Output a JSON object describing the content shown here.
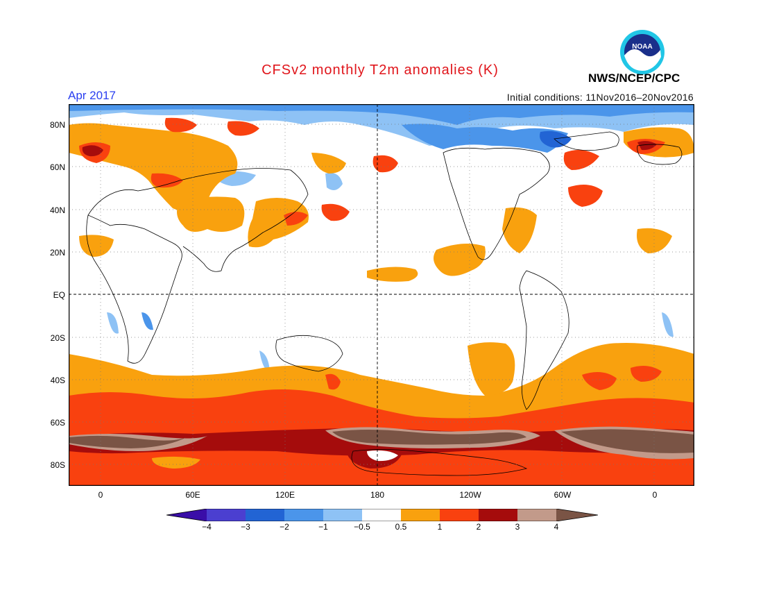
{
  "title": "CFSv2 monthly T2m anomalies (K)",
  "valid_month": "Apr 2017",
  "initial_conditions": "Initial conditions: 11Nov2016–20Nov2016",
  "organization": "NWS/NCEP/CPC",
  "logo_text": "NOAA",
  "lat_labels": [
    "80N",
    "60N",
    "40N",
    "20N",
    "EQ",
    "20S",
    "40S",
    "60S",
    "80S"
  ],
  "lon_labels": [
    "0",
    "60E",
    "120E",
    "180",
    "120W",
    "60W",
    "0"
  ],
  "colorbar": {
    "labels": [
      "−4",
      "−3",
      "−2",
      "−1",
      "−0.5",
      "0.5",
      "1",
      "2",
      "3",
      "4"
    ],
    "colors": [
      "#3a0ea8",
      "#4b3fd0",
      "#2264d4",
      "#4b95ea",
      "#8ec2f5",
      "#ffffff",
      "#f9a10e",
      "#f9410f",
      "#a50c0c",
      "#c29a8a",
      "#7a5445"
    ]
  },
  "colors": {
    "title": "#e0151b",
    "month": "#2a3ff0",
    "warm_light": "#f9a10e",
    "warm_mid": "#f9410f",
    "warm_strong": "#a50c0c",
    "warm_extreme": "#7a5445",
    "warm_extreme_light": "#c29a8a",
    "cool_light": "#8ec2f5",
    "cool_mid": "#4b95ea",
    "cool_strong": "#2264d4"
  }
}
